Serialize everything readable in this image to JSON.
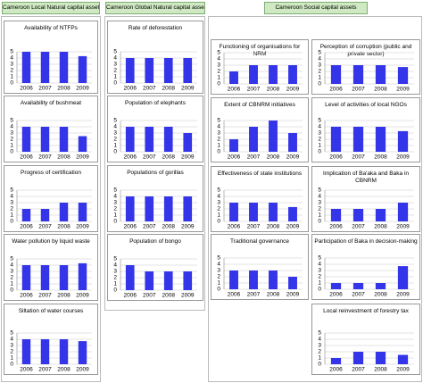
{
  "headers": [
    "Cameroon Local Natural capital assets",
    "Cameroon Global Natural capital assets",
    "Cameroon Social capital assets"
  ],
  "chart_data": [
    {
      "type": "bar",
      "title": "Availability of NTFPs",
      "categories": [
        "2006",
        "2007",
        "2008",
        "2009"
      ],
      "values": [
        5,
        5,
        5,
        4.3
      ],
      "ylim": [
        0,
        5
      ],
      "yticks": [
        0,
        1,
        2,
        3,
        4,
        5
      ],
      "grid": true,
      "color": "#3434e8"
    },
    {
      "type": "bar",
      "title": "Availability of bushmeat",
      "categories": [
        "2006",
        "2007",
        "2008",
        "2009"
      ],
      "values": [
        4,
        4,
        4,
        2.5
      ],
      "ylim": [
        0,
        5
      ],
      "yticks": [
        0,
        1,
        2,
        3,
        4,
        5
      ],
      "grid": true,
      "color": "#3434e8"
    },
    {
      "type": "bar",
      "title": "Progress of certification",
      "categories": [
        "2006",
        "2007",
        "2008",
        "2009"
      ],
      "values": [
        2,
        2,
        3,
        3
      ],
      "ylim": [
        0,
        5
      ],
      "yticks": [
        0,
        1,
        2,
        3,
        4,
        5
      ],
      "grid": true,
      "color": "#3434e8"
    },
    {
      "type": "bar",
      "title": "Water pollution by liquid waste",
      "categories": [
        "2006",
        "2007",
        "2008",
        "2009"
      ],
      "values": [
        4,
        4,
        4,
        4.3
      ],
      "ylim": [
        0,
        5
      ],
      "yticks": [
        0,
        1,
        2,
        3,
        4,
        5
      ],
      "grid": true,
      "color": "#3434e8"
    },
    {
      "type": "bar",
      "title": "Siltation of water courses",
      "categories": [
        "2006",
        "2007",
        "2008",
        "2009"
      ],
      "values": [
        4,
        4,
        4,
        3.7
      ],
      "ylim": [
        0,
        5
      ],
      "yticks": [
        0,
        1,
        2,
        3,
        4,
        5
      ],
      "grid": true,
      "color": "#3434e8"
    },
    {
      "type": "bar",
      "title": "Rate of deforestation",
      "categories": [
        "2006",
        "2007",
        "2008",
        "2009"
      ],
      "values": [
        4,
        4,
        4,
        4
      ],
      "ylim": [
        0,
        5
      ],
      "yticks": [
        0,
        1,
        2,
        3,
        4,
        5
      ],
      "grid": true,
      "color": "#3434e8"
    },
    {
      "type": "bar",
      "title": "Population of elephants",
      "categories": [
        "2006",
        "2007",
        "2008",
        "2009"
      ],
      "values": [
        4,
        4,
        4,
        3
      ],
      "ylim": [
        0,
        5
      ],
      "yticks": [
        0,
        1,
        2,
        3,
        4,
        5
      ],
      "grid": true,
      "color": "#3434e8"
    },
    {
      "type": "bar",
      "title": "Populations of gorillas",
      "categories": [
        "2006",
        "2007",
        "2008",
        "2009"
      ],
      "values": [
        4,
        4,
        4,
        4
      ],
      "ylim": [
        0,
        5
      ],
      "yticks": [
        0,
        1,
        2,
        3,
        4,
        5
      ],
      "grid": true,
      "color": "#3434e8"
    },
    {
      "type": "bar",
      "title": "Population of bongo",
      "categories": [
        "2006",
        "2007",
        "2008",
        "2009"
      ],
      "values": [
        4,
        3,
        3,
        3
      ],
      "ylim": [
        0,
        5
      ],
      "yticks": [
        0,
        1,
        2,
        3,
        4,
        5
      ],
      "grid": true,
      "color": "#3434e8"
    },
    {
      "type": "bar",
      "title": "Functioning of organisations for NRM",
      "categories": [
        "2006",
        "2007",
        "2008",
        "2009"
      ],
      "values": [
        2,
        3,
        3,
        3
      ],
      "ylim": [
        0,
        5
      ],
      "yticks": [
        0,
        1,
        2,
        3,
        4,
        5
      ],
      "grid": true,
      "color": "#3434e8"
    },
    {
      "type": "bar",
      "title": "Extent of CBNRM initiatives",
      "categories": [
        "2006",
        "2007",
        "2008",
        "2009"
      ],
      "values": [
        2,
        4,
        5,
        3
      ],
      "ylim": [
        0,
        5
      ],
      "yticks": [
        0,
        1,
        2,
        3,
        4,
        5
      ],
      "grid": true,
      "color": "#3434e8"
    },
    {
      "type": "bar",
      "title": "Effectiveness of state institutions",
      "categories": [
        "2006",
        "2007",
        "2008",
        "2009"
      ],
      "values": [
        3,
        3,
        3,
        2.3
      ],
      "ylim": [
        0,
        5
      ],
      "yticks": [
        0,
        1,
        2,
        3,
        4,
        5
      ],
      "grid": true,
      "color": "#3434e8"
    },
    {
      "type": "bar",
      "title": "Traditional governance",
      "categories": [
        "2006",
        "2007",
        "2008",
        "2009"
      ],
      "values": [
        3,
        3,
        3,
        2
      ],
      "ylim": [
        0,
        5
      ],
      "yticks": [
        0,
        1,
        2,
        3,
        4,
        5
      ],
      "grid": true,
      "color": "#3434e8"
    },
    {
      "type": "bar",
      "title": "Perception of corruption (public and private sector)",
      "categories": [
        "2006",
        "2007",
        "2008",
        "2009"
      ],
      "values": [
        3,
        3,
        3,
        2.7
      ],
      "ylim": [
        0,
        5
      ],
      "yticks": [
        0,
        1,
        2,
        3,
        4,
        5
      ],
      "grid": true,
      "color": "#3434e8"
    },
    {
      "type": "bar",
      "title": "Level of activities of local NGOs",
      "categories": [
        "2006",
        "2007",
        "2008",
        "2009"
      ],
      "values": [
        4,
        4,
        4,
        3.3
      ],
      "ylim": [
        0,
        5
      ],
      "yticks": [
        0,
        1,
        2,
        3,
        4,
        5
      ],
      "grid": true,
      "color": "#3434e8"
    },
    {
      "type": "bar",
      "title": "Implication of Ba'aka and Baka in CBNRM",
      "categories": [
        "2006",
        "2007",
        "2008",
        "2009"
      ],
      "values": [
        2,
        2,
        2,
        3
      ],
      "ylim": [
        0,
        5
      ],
      "yticks": [
        0,
        1,
        2,
        3,
        4,
        5
      ],
      "grid": true,
      "color": "#3434e8"
    },
    {
      "type": "bar",
      "title": "Participation of Baka in decision-making",
      "categories": [
        "2006",
        "2007",
        "2008",
        "2009"
      ],
      "values": [
        1,
        1,
        1,
        3.7
      ],
      "ylim": [
        0,
        5
      ],
      "yticks": [
        0,
        1,
        2,
        3,
        4,
        5
      ],
      "grid": true,
      "color": "#3434e8"
    },
    {
      "type": "bar",
      "title": "Local reinvestment of forestry tax",
      "categories": [
        "2006",
        "2007",
        "2008",
        "2009"
      ],
      "values": [
        1,
        2,
        2,
        1.5
      ],
      "ylim": [
        0,
        5
      ],
      "yticks": [
        0,
        1,
        2,
        3,
        4,
        5
      ],
      "grid": true,
      "color": "#3434e8"
    }
  ]
}
